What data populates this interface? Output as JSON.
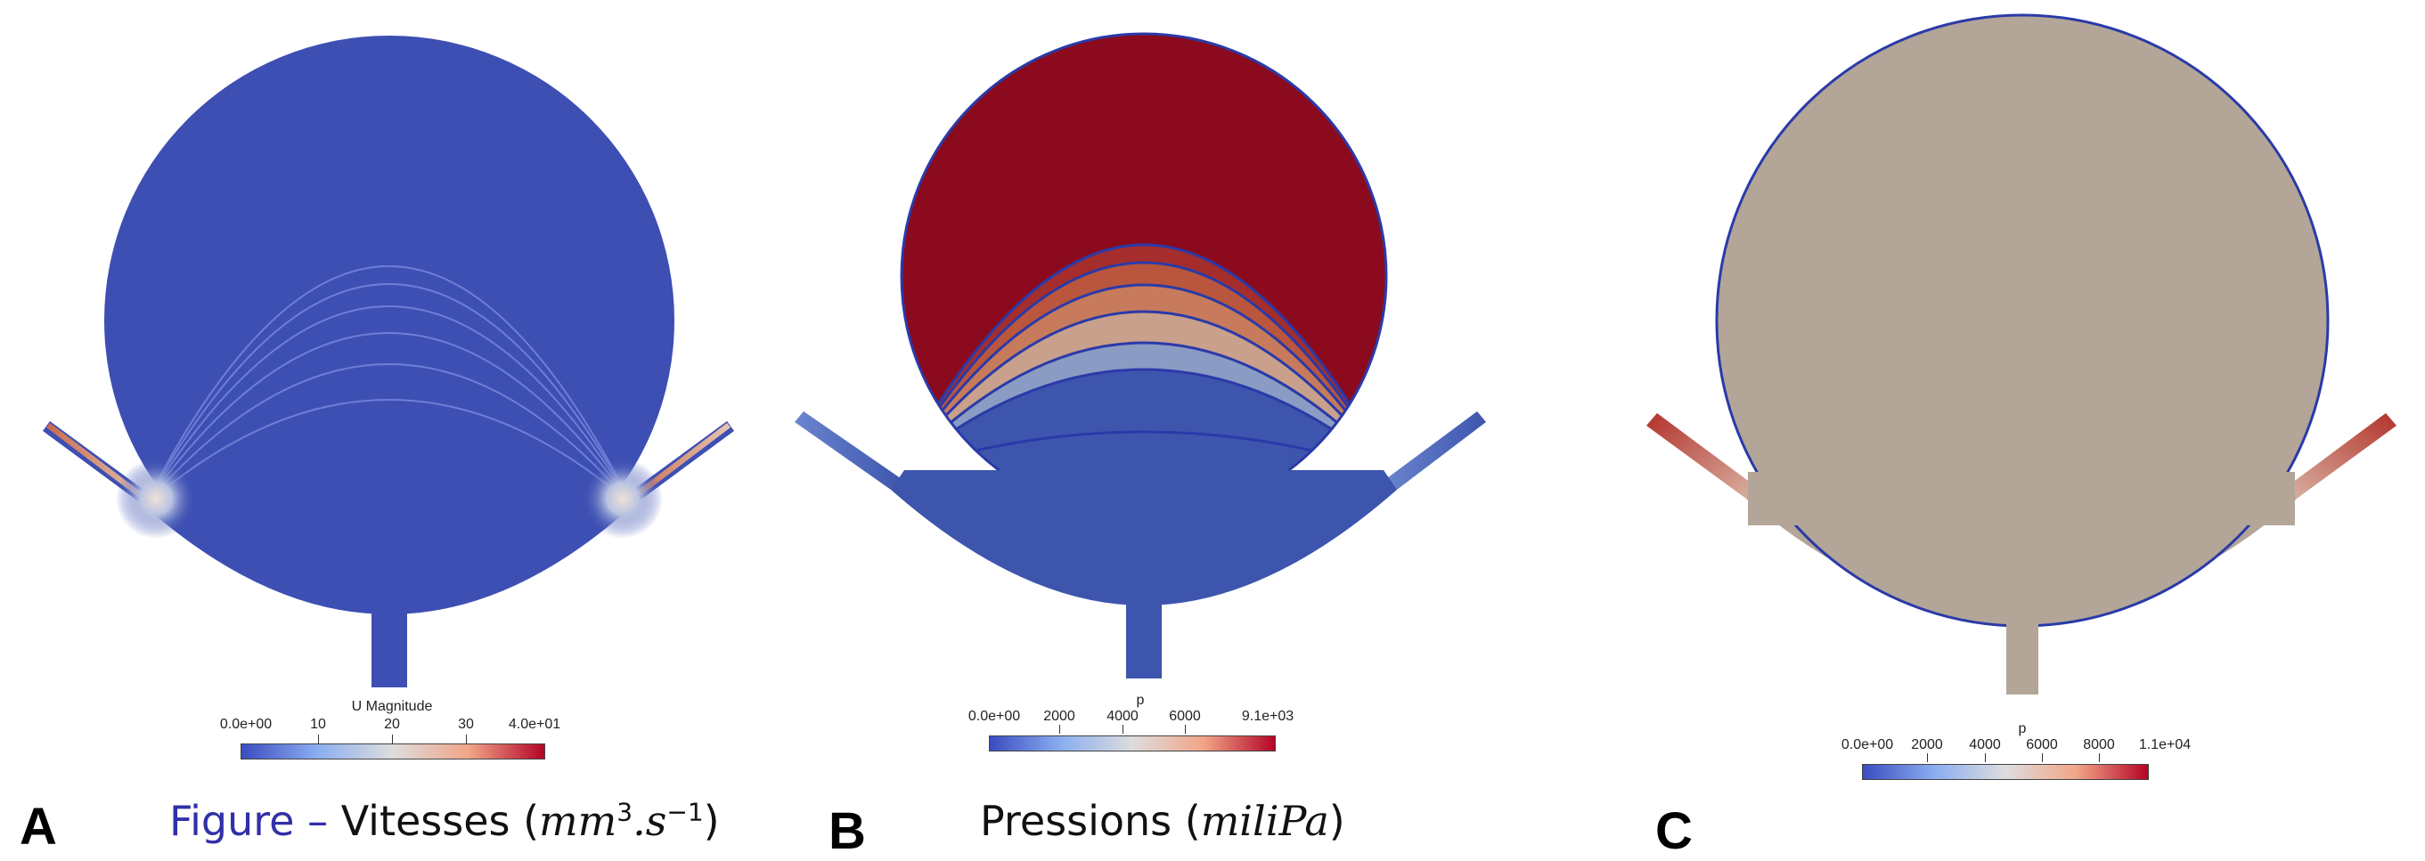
{
  "panels": [
    {
      "letter": "A",
      "colorbar": {
        "title": "U Magnitude",
        "ticks": [
          "0.0e+00",
          "10",
          "20",
          "30",
          "4.0e+01"
        ],
        "colors": [
          "#3b4cc0",
          "#dddddd",
          "#b40426"
        ]
      },
      "caption": {
        "figure_label": "Figure –",
        "text": "Vitesses (",
        "unit_base": "mm",
        "unit_exp1": "3",
        "unit_mid": ".s",
        "unit_exp2": "−1",
        "close": ")"
      }
    },
    {
      "letter": "B",
      "colorbar": {
        "title": "p",
        "ticks": [
          "0.0e+00",
          "2000",
          "4000",
          "6000",
          "9.1e+03"
        ],
        "colors": [
          "#3b4cc0",
          "#dddddd",
          "#b40426"
        ]
      },
      "caption": {
        "text": "Pressions (",
        "unit": "miliPa",
        "close": ")"
      }
    },
    {
      "letter": "C",
      "colorbar": {
        "title": "p",
        "ticks": [
          "0.0e+00",
          "2000",
          "4000",
          "6000",
          "8000",
          "1.1e+04"
        ],
        "colors": [
          "#3b4cc0",
          "#dddddd",
          "#b40426"
        ]
      }
    }
  ],
  "colors": {
    "low": "#3b4cc0",
    "field_blue": "#3d55ad",
    "neutral": "#b3a698",
    "dark_red": "#8b0a1e",
    "red_orange": "#c0553a",
    "salmon": "#c9967c",
    "lavender": "#8a9cc4",
    "outline": "#2a3aa8"
  }
}
